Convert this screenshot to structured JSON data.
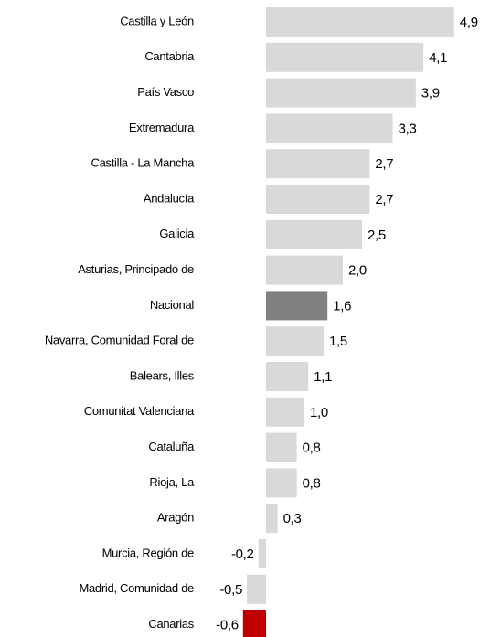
{
  "chart_data": {
    "type": "hbar",
    "categories": [
      "Castilla y León",
      "Cantabria",
      "País Vasco",
      "Extremadura",
      "Castilla - La Mancha",
      "Andalucía",
      "Galicia",
      "Asturias, Principado de",
      "Nacional",
      "Navarra, Comunidad Foral de",
      "Balears, Illes",
      "Comunitat Valenciana",
      "Cataluña",
      "Rioja, La",
      "Aragón",
      "Murcia, Región de",
      "Madrid, Comunidad de",
      "Canarias"
    ],
    "values": [
      4.9,
      4.1,
      3.9,
      3.3,
      2.7,
      2.7,
      2.5,
      2.0,
      1.6,
      1.5,
      1.1,
      1.0,
      0.8,
      0.8,
      0.3,
      -0.2,
      -0.5,
      -0.6
    ],
    "value_labels": [
      "4,9",
      "4,1",
      "3,9",
      "3,3",
      "2,7",
      "2,7",
      "2,5",
      "2,0",
      "1,6",
      "1,5",
      "1,1",
      "1,0",
      "0,8",
      "0,8",
      "0,3",
      "-0,2",
      "-0,5",
      "-0,6"
    ],
    "colors": [
      "#d9d9d9",
      "#d9d9d9",
      "#d9d9d9",
      "#d9d9d9",
      "#d9d9d9",
      "#d9d9d9",
      "#d9d9d9",
      "#d9d9d9",
      "#808080",
      "#d9d9d9",
      "#d9d9d9",
      "#d9d9d9",
      "#d9d9d9",
      "#d9d9d9",
      "#d9d9d9",
      "#d9d9d9",
      "#d9d9d9",
      "#c00000"
    ]
  }
}
